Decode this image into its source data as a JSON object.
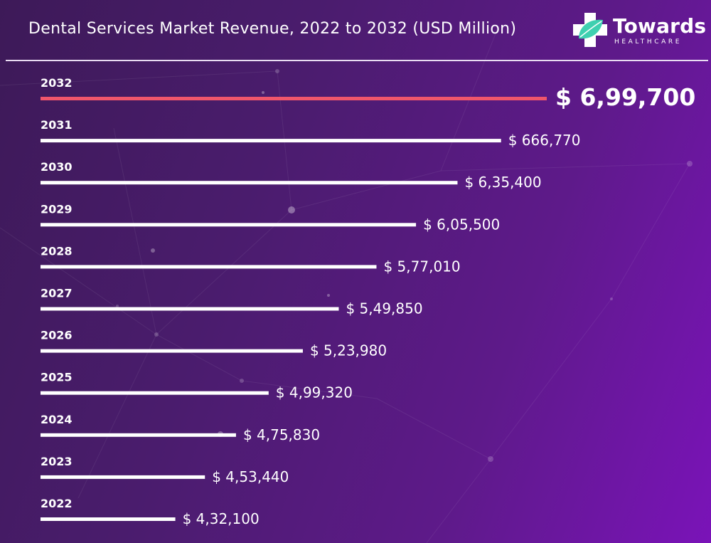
{
  "brand": {
    "name": "Towards",
    "subtitle": "HEALTHCARE",
    "accent_color": "#3fd0b0"
  },
  "colors": {
    "bar": "#ffffff",
    "highlight_bar": "#f0566b",
    "divider": "#e9dcf2"
  },
  "chart_data": {
    "type": "bar",
    "orientation": "horizontal",
    "title": "Dental Services Market Revenue, 2022 to 2032 (USD Million)",
    "categories": [
      "2032",
      "2031",
      "2030",
      "2029",
      "2028",
      "2027",
      "2026",
      "2025",
      "2024",
      "2023",
      "2022"
    ],
    "values": [
      699700,
      666770,
      635400,
      605500,
      577010,
      549850,
      523980,
      499320,
      475830,
      453440,
      432100
    ],
    "value_labels": [
      "$ 6,99,700",
      "$ 666,770",
      "$ 6,35,400",
      "$ 6,05,500",
      "$ 5,77,010",
      "$ 5,49,850",
      "$ 5,23,980",
      "$ 4,99,320",
      "$ 4,75,830",
      "$ 4,53,440",
      "$ 4,32,100"
    ],
    "highlight_index": 0,
    "xlim": [
      335000,
      699700
    ],
    "grid": false,
    "legend": "none"
  }
}
